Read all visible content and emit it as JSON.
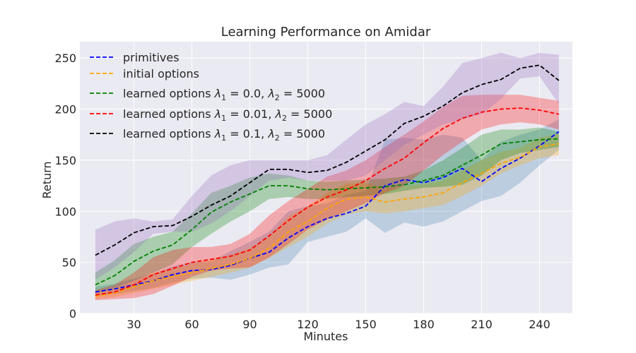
{
  "chart_data": {
    "type": "line",
    "title": "Learning Performance on Amidar",
    "xlabel": "Minutes",
    "ylabel": "Return",
    "xlim": [
      2,
      257
    ],
    "ylim": [
      0,
      266
    ],
    "xticks": [
      30,
      60,
      90,
      120,
      150,
      180,
      210,
      240
    ],
    "yticks": [
      0,
      50,
      100,
      150,
      200,
      250
    ],
    "grid": true,
    "legend_position": "top-left",
    "x": [
      10,
      20,
      30,
      40,
      50,
      60,
      70,
      80,
      90,
      100,
      110,
      120,
      130,
      140,
      150,
      160,
      170,
      180,
      190,
      200,
      210,
      220,
      230,
      240,
      250
    ],
    "series": [
      {
        "name": "primitives",
        "color": "#0000ff",
        "values": [
          21,
          24,
          28,
          32,
          38,
          42,
          43,
          47,
          54,
          60,
          74,
          85,
          93,
          98,
          105,
          125,
          131,
          128,
          133,
          142,
          129,
          142,
          152,
          164,
          178
        ],
        "lower": [
          17,
          19,
          22,
          25,
          30,
          34,
          35,
          33,
          38,
          45,
          48,
          70,
          75,
          80,
          93,
          79,
          89,
          85,
          90,
          100,
          110,
          115,
          128,
          145,
          160
        ],
        "upper": [
          26,
          29,
          34,
          39,
          46,
          50,
          51,
          61,
          70,
          80,
          100,
          105,
          108,
          116,
          120,
          170,
          172,
          170,
          175,
          172,
          150,
          168,
          175,
          180,
          190
        ],
        "band_color": "#4682b4"
      },
      {
        "name": "initial options",
        "color": "#ffa500",
        "values": [
          17,
          20,
          26,
          32,
          36,
          40,
          44,
          48,
          54,
          64,
          80,
          90,
          103,
          112,
          114,
          109,
          112,
          114,
          118,
          128,
          137,
          147,
          153,
          163,
          166
        ],
        "lower": [
          14,
          16,
          20,
          24,
          28,
          32,
          36,
          40,
          45,
          54,
          65,
          75,
          88,
          97,
          100,
          98,
          100,
          103,
          106,
          115,
          125,
          137,
          145,
          152,
          155
        ],
        "upper": [
          21,
          25,
          32,
          40,
          44,
          49,
          53,
          57,
          64,
          75,
          95,
          105,
          118,
          127,
          128,
          122,
          125,
          127,
          130,
          140,
          150,
          158,
          162,
          172,
          176
        ],
        "band_color": "#ffa500"
      },
      {
        "name": "learned options λ1 = 0.0, λ2 = 5000",
        "label_parts": [
          "learned options ",
          "λ",
          "1",
          " = 0.0, ",
          "λ",
          "2",
          " = 5000"
        ],
        "color": "#008000",
        "values": [
          28,
          37,
          51,
          61,
          67,
          82,
          99,
          109,
          117,
          125,
          125,
          122,
          121,
          122,
          123,
          124,
          126,
          130,
          135,
          145,
          155,
          166,
          168,
          170,
          171
        ],
        "lower": [
          20,
          25,
          32,
          40,
          48,
          65,
          78,
          90,
          100,
          112,
          114,
          112,
          112,
          114,
          115,
          117,
          120,
          123,
          124,
          126,
          135,
          150,
          157,
          160,
          163
        ],
        "upper": [
          40,
          52,
          68,
          75,
          80,
          98,
          118,
          125,
          133,
          137,
          135,
          130,
          129,
          130,
          131,
          132,
          134,
          140,
          150,
          162,
          175,
          180,
          180,
          182,
          178
        ],
        "band_color": "#008000"
      },
      {
        "name": "learned options λ1 = 0.01, λ2 = 5000",
        "label_parts": [
          "learned options ",
          "λ",
          "1",
          " = 0.01, ",
          "λ",
          "2",
          " = 5000"
        ],
        "color": "#ff0000",
        "values": [
          18,
          21,
          28,
          38,
          44,
          50,
          53,
          56,
          62,
          76,
          91,
          104,
          114,
          121,
          130,
          142,
          152,
          167,
          181,
          191,
          197,
          200,
          201,
          199,
          195
        ],
        "lower": [
          13,
          14,
          15,
          19,
          27,
          36,
          42,
          44,
          45,
          55,
          68,
          82,
          92,
          100,
          108,
          118,
          125,
          140,
          155,
          168,
          180,
          185,
          187,
          185,
          180
        ],
        "upper": [
          23,
          28,
          40,
          55,
          62,
          65,
          65,
          68,
          78,
          96,
          110,
          122,
          134,
          140,
          150,
          163,
          175,
          188,
          202,
          213,
          214,
          214,
          214,
          211,
          208
        ],
        "band_color": "#ff0000"
      },
      {
        "name": "learned options λ1 = 0.1, λ2 = 5000",
        "label_parts": [
          "learned options ",
          "λ",
          "1",
          " = 0.1, ",
          "λ",
          "2",
          " = 5000"
        ],
        "color": "#000000",
        "values": [
          57,
          67,
          79,
          85,
          86,
          95,
          106,
          115,
          128,
          141,
          141,
          138,
          140,
          148,
          159,
          170,
          186,
          193,
          203,
          216,
          224,
          229,
          240,
          243,
          228
        ],
        "lower": [
          33,
          45,
          60,
          78,
          80,
          80,
          88,
          100,
          115,
          130,
          133,
          130,
          130,
          130,
          135,
          150,
          165,
          175,
          185,
          190,
          195,
          210,
          230,
          232,
          205
        ],
        "upper": [
          82,
          90,
          93,
          90,
          92,
          115,
          135,
          145,
          150,
          150,
          150,
          150,
          155,
          170,
          185,
          195,
          207,
          203,
          222,
          245,
          250,
          255,
          250,
          255,
          253
        ],
        "band_color": "#9467bd"
      }
    ]
  }
}
